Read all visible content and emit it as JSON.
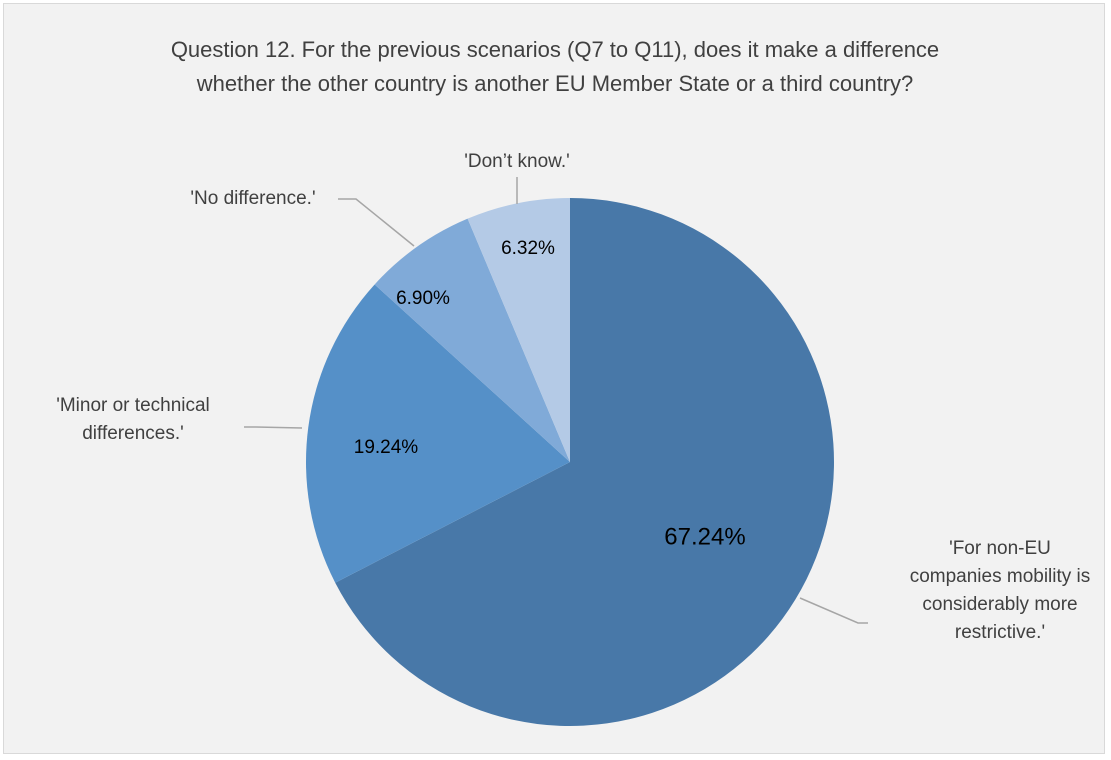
{
  "chart_data": {
    "type": "pie",
    "title_lines": [
      "Question 12. For the previous scenarios (Q7 to Q11), does it make a difference",
      "whether the other country is another EU Member State or a third country?"
    ],
    "slices": [
      {
        "name": "'For non-EU companies mobility is considerably more restrictive.'",
        "label_lines": [
          "'For non-EU",
          "companies mobility is",
          "considerably more",
          "restrictive.'"
        ],
        "value": 67.24,
        "value_label": "67.24%",
        "color": "#4878a8"
      },
      {
        "name": "'Minor or technical differences.'",
        "label_lines": [
          "'Minor or technical",
          "differences.'"
        ],
        "value": 19.24,
        "value_label": "19.24%",
        "color": "#5590c8"
      },
      {
        "name": "'No difference.'",
        "label_lines": [
          "'No difference.'"
        ],
        "value": 6.9,
        "value_label": "6.90%",
        "color": "#80aad8"
      },
      {
        "name": "'Don’t know.'",
        "label_lines": [
          "'Don’t know.'"
        ],
        "value": 6.32,
        "value_label": "6.32%",
        "color": "#b4cae6"
      }
    ],
    "start_angle_deg": 0,
    "direction": "clockwise",
    "legend": "none",
    "leader_line_color": "#a6a6a6"
  }
}
